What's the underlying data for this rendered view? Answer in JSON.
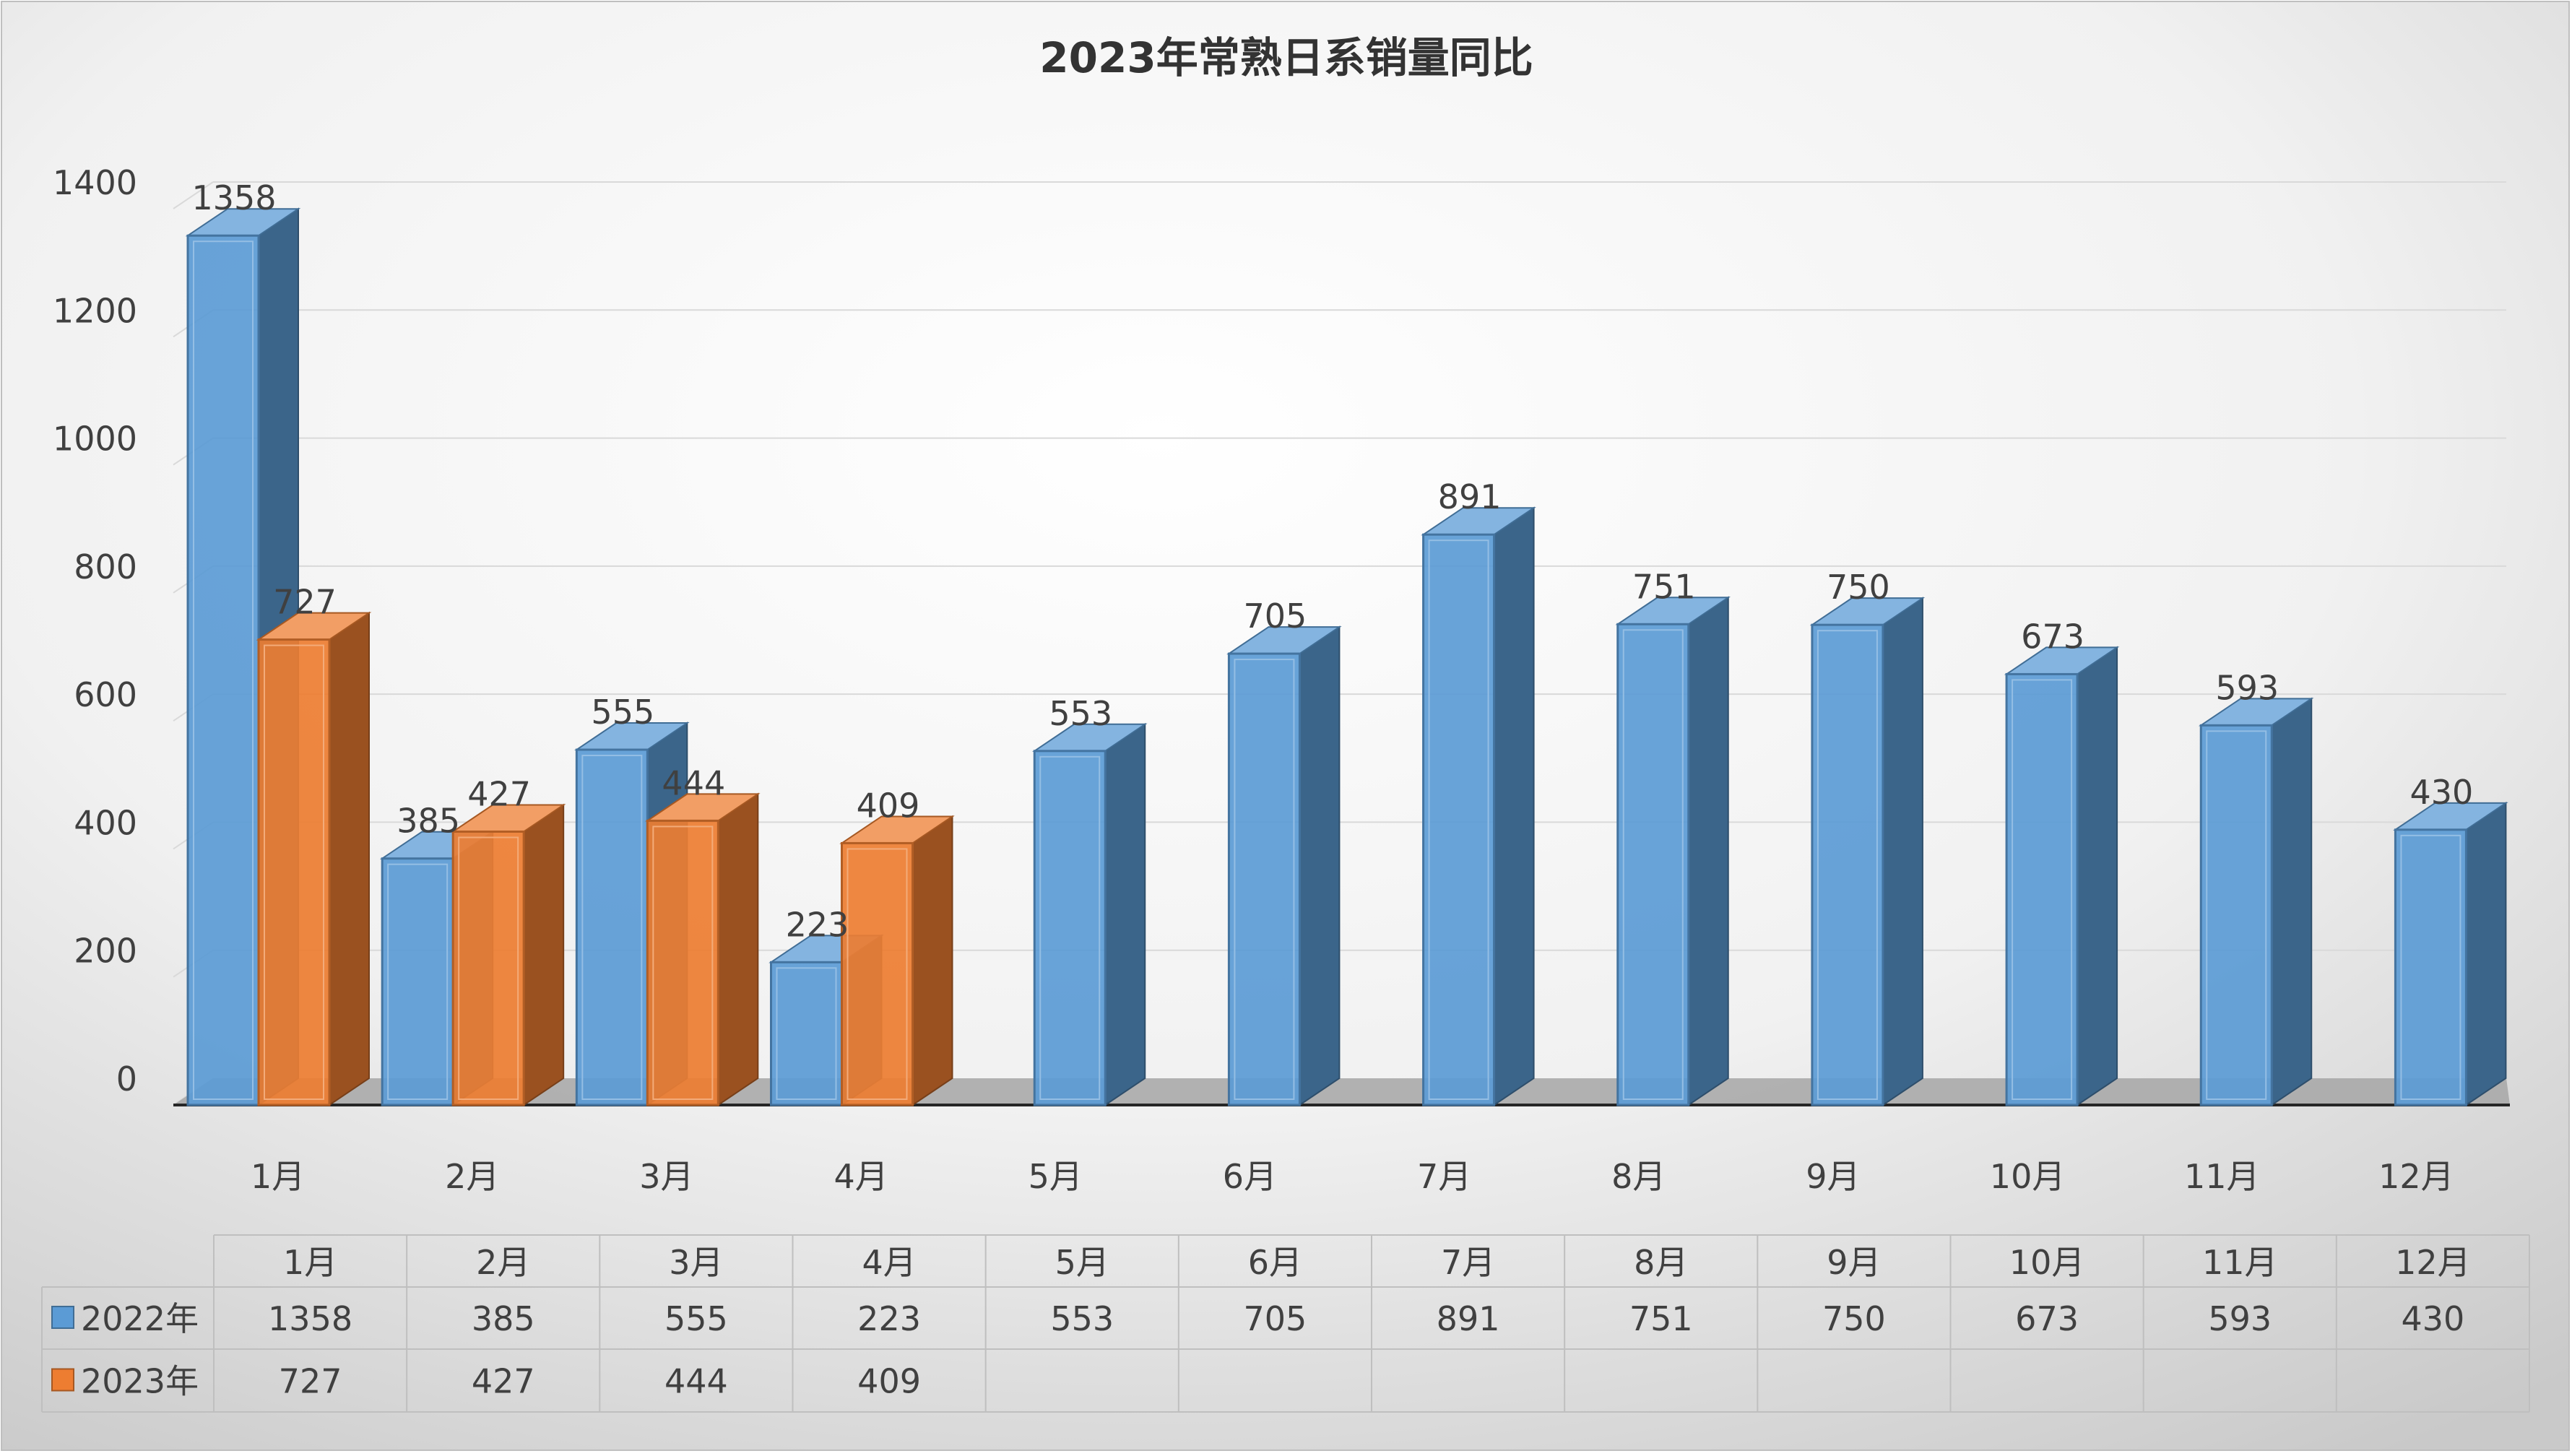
{
  "chart_data": {
    "type": "bar",
    "title": "2023年常熟日系销量同比",
    "categories": [
      "1月",
      "2月",
      "3月",
      "4月",
      "5月",
      "6月",
      "7月",
      "8月",
      "9月",
      "10月",
      "11月",
      "12月"
    ],
    "series": [
      {
        "name": "2022年",
        "color": "#5b9bd5",
        "values": [
          1358,
          385,
          555,
          223,
          553,
          705,
          891,
          751,
          750,
          673,
          593,
          430
        ]
      },
      {
        "name": "2023年",
        "color": "#ed7d31",
        "values": [
          727,
          427,
          444,
          409,
          null,
          null,
          null,
          null,
          null,
          null,
          null,
          null
        ]
      }
    ],
    "y_ticks": [
      "0",
      "200",
      "400",
      "600",
      "800",
      "1000",
      "1200",
      "1400"
    ],
    "ylim": [
      0,
      1400
    ],
    "grid": true,
    "legend": "data-table",
    "style": "3d-clustered-column"
  }
}
